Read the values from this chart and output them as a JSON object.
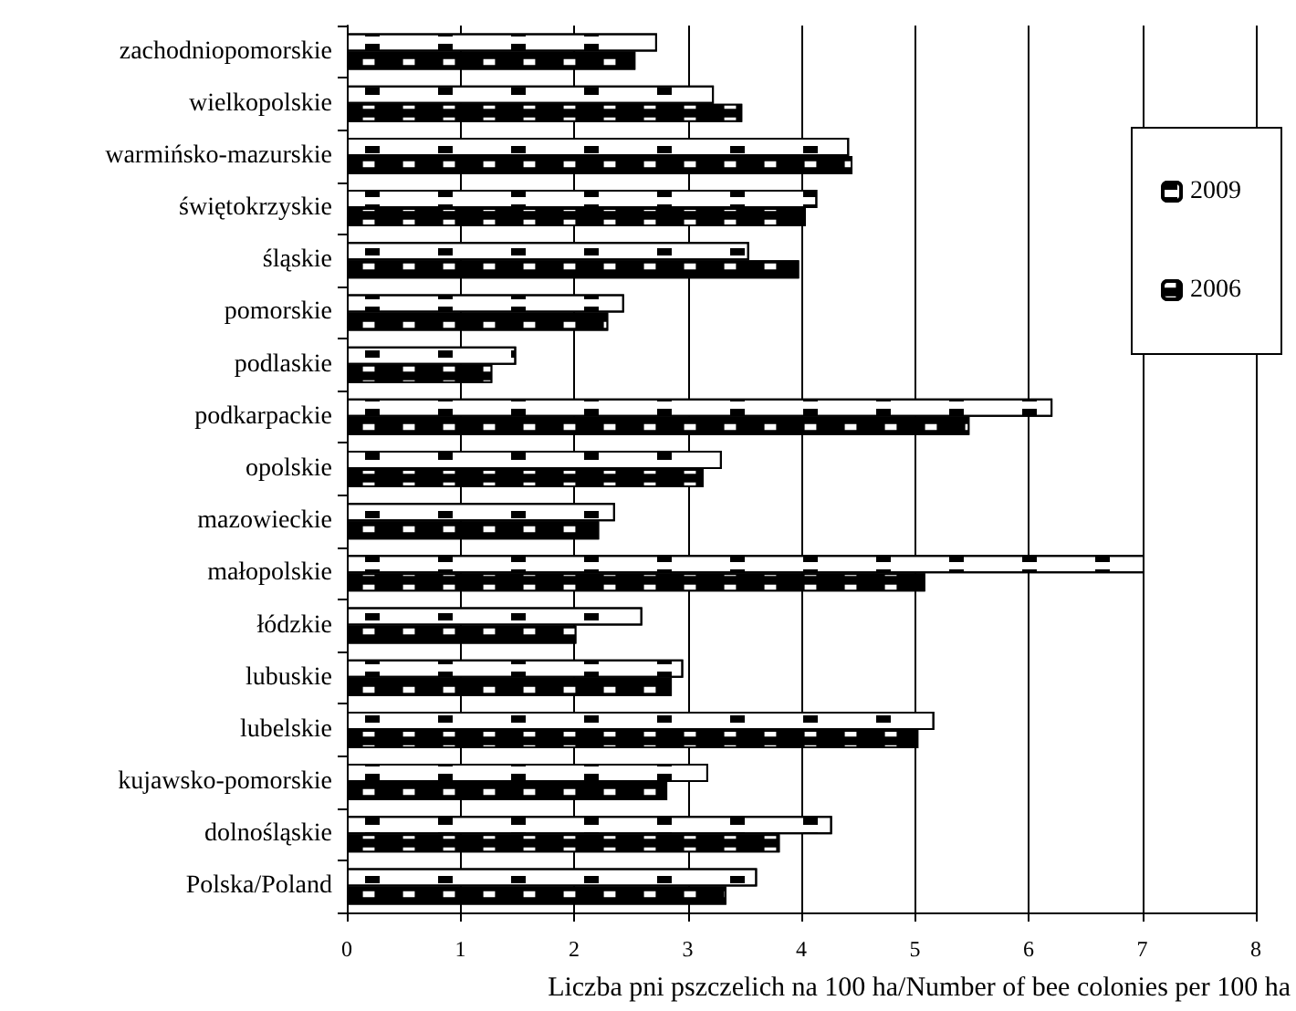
{
  "chart_data": {
    "type": "bar",
    "orientation": "horizontal",
    "xlabel": "Liczba pni pszczelich na 100 ha/Number of bee colonies per 100 ha",
    "categories": [
      "zachodniopomorskie",
      "wielkopolskie",
      "warmińsko-mazurskie",
      "świętokrzyskie",
      "śląskie",
      "pomorskie",
      "podlaskie",
      "podkarpackie",
      "opolskie",
      "mazowieckie",
      "małopolskie",
      "łódzkie",
      "lubuskie",
      "lubelskie",
      "kujawsko-pomorskie",
      "dolnośląskie",
      "Polska/Poland"
    ],
    "series": [
      {
        "name": "2009",
        "color": "#ffffff",
        "values": [
          2.73,
          3.23,
          4.42,
          4.14,
          3.54,
          2.44,
          1.49,
          6.21,
          3.3,
          2.36,
          7.02,
          2.6,
          2.96,
          5.17,
          3.18,
          4.27,
          3.61
        ]
      },
      {
        "name": "2006",
        "color": "#000000",
        "values": [
          2.54,
          3.48,
          4.45,
          4.04,
          3.98,
          2.3,
          1.28,
          5.48,
          3.14,
          2.22,
          5.09,
          2.02,
          2.86,
          5.03,
          2.82,
          3.81,
          3.34
        ]
      }
    ],
    "xlim": [
      0,
      8
    ],
    "xticks": [
      0,
      1,
      2,
      3,
      4,
      5,
      6,
      7,
      8
    ],
    "grid": "x",
    "legend": "top right"
  }
}
